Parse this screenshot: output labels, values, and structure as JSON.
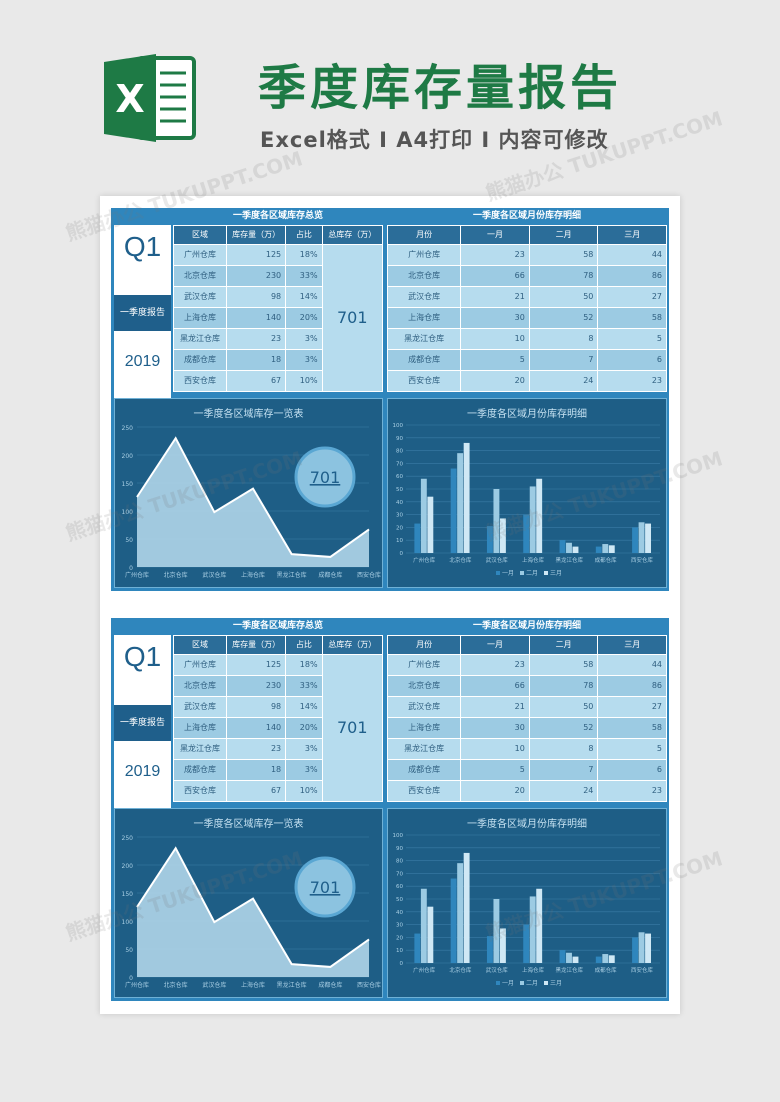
{
  "header": {
    "title": "季度库存量报告",
    "subtitle": "Excel格式 Ⅰ A4打印 Ⅰ 内容可修改",
    "logo_letter": "X",
    "logo_icon": "excel-logo-icon",
    "colors": {
      "brand": "#1e7a45",
      "panel": "#2f86bd",
      "dark": "#1f5f8b"
    }
  },
  "report": {
    "quarter": "Q1",
    "band_label": "一季度报告",
    "year": "2019",
    "summary_title": "一季度各区域库存总览",
    "summary_headers": [
      "区域",
      "库存量（万）",
      "占比",
      "总库存（万）"
    ],
    "summary_rows": [
      {
        "region": "广州仓库",
        "stock": "125",
        "ratio": "18%"
      },
      {
        "region": "北京仓库",
        "stock": "230",
        "ratio": "33%"
      },
      {
        "region": "武汉仓库",
        "stock": "98",
        "ratio": "14%"
      },
      {
        "region": "上海仓库",
        "stock": "140",
        "ratio": "20%"
      },
      {
        "region": "黑龙江仓库",
        "stock": "23",
        "ratio": "3%"
      },
      {
        "region": "成都仓库",
        "stock": "18",
        "ratio": "3%"
      },
      {
        "region": "西安仓库",
        "stock": "67",
        "ratio": "10%"
      }
    ],
    "total": "701",
    "monthly_title": "一季度各区域月份库存明细",
    "monthly_headers": [
      "月份",
      "一月",
      "二月",
      "三月"
    ],
    "monthly_rows": [
      {
        "region": "广州仓库",
        "m1": "23",
        "m2": "58",
        "m3": "44"
      },
      {
        "region": "北京仓库",
        "m1": "66",
        "m2": "78",
        "m3": "86"
      },
      {
        "region": "武汉仓库",
        "m1": "21",
        "m2": "50",
        "m3": "27"
      },
      {
        "region": "上海仓库",
        "m1": "30",
        "m2": "52",
        "m3": "58"
      },
      {
        "region": "黑龙江仓库",
        "m1": "10",
        "m2": "8",
        "m3": "5"
      },
      {
        "region": "成都仓库",
        "m1": "5",
        "m2": "7",
        "m3": "6"
      },
      {
        "region": "西安仓库",
        "m1": "20",
        "m2": "24",
        "m3": "23"
      }
    ]
  },
  "chart_data": [
    {
      "type": "area",
      "title": "一季度各区域库存一览表",
      "categories": [
        "广州仓库",
        "北京仓库",
        "武汉仓库",
        "上海仓库",
        "黑龙江仓库",
        "成都仓库",
        "西安仓库"
      ],
      "values": [
        125,
        230,
        98,
        140,
        23,
        18,
        67
      ],
      "ylim": [
        0,
        250
      ],
      "yticks": [
        0,
        50,
        100,
        150,
        200,
        250
      ],
      "callout": "701",
      "xlabel": "",
      "ylabel": ""
    },
    {
      "type": "bar",
      "title": "一季度各区域月份库存明细",
      "categories": [
        "广州仓库",
        "北京仓库",
        "武汉仓库",
        "上海仓库",
        "黑龙江仓库",
        "成都仓库",
        "西安仓库"
      ],
      "series": [
        {
          "name": "一月",
          "values": [
            23,
            66,
            21,
            30,
            10,
            5,
            20
          ],
          "color": "#2f86bd"
        },
        {
          "name": "二月",
          "values": [
            58,
            78,
            50,
            52,
            8,
            7,
            24
          ],
          "color": "#9ccbe3"
        },
        {
          "name": "三月",
          "values": [
            44,
            86,
            27,
            58,
            5,
            6,
            23
          ],
          "color": "#cfe8f5"
        }
      ],
      "ylim": [
        0,
        100
      ],
      "yticks": [
        0,
        10,
        20,
        30,
        40,
        50,
        60,
        70,
        80,
        90,
        100
      ],
      "legend": "bottom",
      "xlabel": "",
      "ylabel": ""
    }
  ]
}
